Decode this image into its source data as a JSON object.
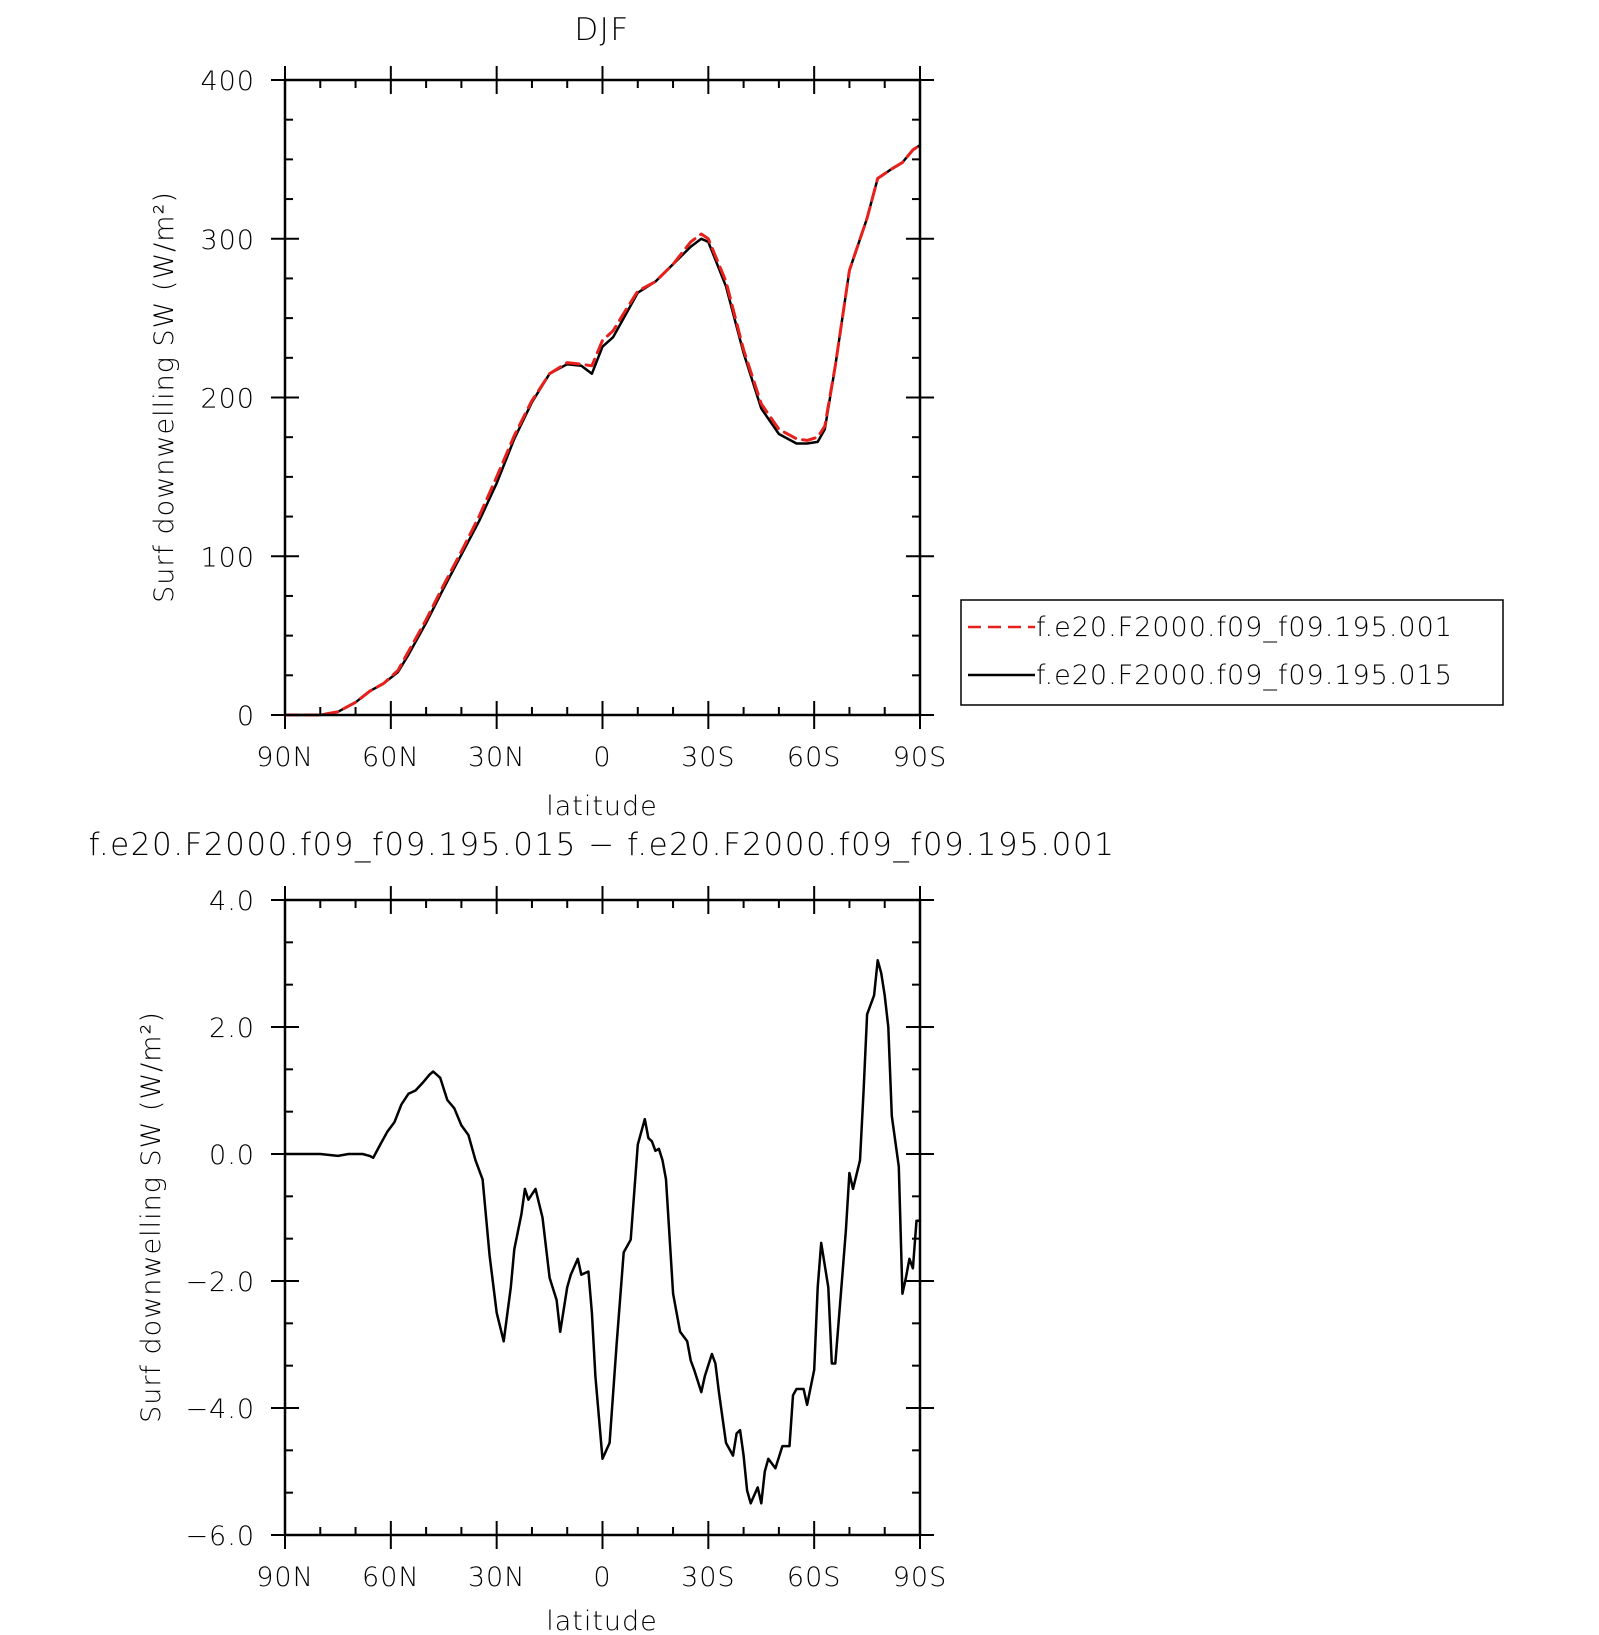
{
  "chart_data": [
    {
      "type": "line",
      "title": "DJF",
      "xlabel": "latitude",
      "ylabel": "Surf downwelling SW (W/m²)",
      "x_ticks": [
        "90N",
        "60N",
        "30N",
        "0",
        "30S",
        "60S",
        "90S"
      ],
      "y_ticks": [
        "0",
        "100",
        "200",
        "300",
        "400"
      ],
      "ylim": [
        0,
        400
      ],
      "xlim": [
        90,
        -90
      ],
      "legend_position": "right",
      "series": [
        {
          "name": "f.e20.F2000.f09_f09.195.001",
          "color": "#e8201c",
          "dash": "dashed",
          "x": [
            90,
            80,
            75,
            70,
            66,
            62,
            58,
            55,
            50,
            45,
            40,
            35,
            30,
            25,
            20,
            15,
            10,
            6,
            3,
            0,
            -3,
            -6,
            -10,
            -15,
            -20,
            -25,
            -28,
            -30,
            -35,
            -40,
            -45,
            -50,
            -55,
            -58,
            -61,
            -63,
            -66,
            -70,
            -75,
            -78,
            -82,
            -85,
            -88,
            -90
          ],
          "y": [
            0,
            0,
            2,
            8,
            15,
            20,
            28,
            40,
            60,
            82,
            103,
            125,
            150,
            176,
            198,
            215,
            222,
            221,
            220,
            236,
            242,
            253,
            267,
            273,
            284,
            298,
            303,
            300,
            273,
            230,
            196,
            180,
            174,
            173,
            175,
            182,
            220,
            280,
            313,
            338,
            344,
            348,
            356,
            359
          ]
        },
        {
          "name": "f.e20.F2000.f09_f09.195.015",
          "color": "#000000",
          "dash": "solid",
          "x": [
            90,
            80,
            75,
            70,
            66,
            62,
            58,
            55,
            50,
            45,
            40,
            35,
            30,
            25,
            20,
            15,
            10,
            6,
            3,
            0,
            -3,
            -6,
            -10,
            -15,
            -20,
            -25,
            -28,
            -30,
            -35,
            -40,
            -45,
            -50,
            -55,
            -58,
            -61,
            -63,
            -66,
            -70,
            -75,
            -78,
            -82,
            -85,
            -88,
            -90
          ],
          "y": [
            0,
            0,
            2,
            8,
            15,
            20,
            27,
            38,
            58,
            80,
            101,
            122,
            146,
            174,
            197,
            215,
            221,
            220,
            215,
            232,
            238,
            250,
            266,
            273,
            284,
            295,
            300,
            298,
            270,
            228,
            193,
            177,
            171,
            171,
            172,
            180,
            220,
            280,
            313,
            338,
            344,
            348,
            356,
            359
          ]
        }
      ]
    },
    {
      "type": "line",
      "title": "f.e20.F2000.f09_f09.195.015 − f.e20.F2000.f09_f09.195.001",
      "xlabel": "latitude",
      "ylabel": "Surf downwelling SW (W/m²)",
      "x_ticks": [
        "90N",
        "60N",
        "30N",
        "0",
        "30S",
        "60S",
        "90S"
      ],
      "y_ticks": [
        "−6.0",
        "−4.0",
        "−2.0",
        "0.0",
        "2.0",
        "4.0"
      ],
      "ylim": [
        -6,
        4
      ],
      "xlim": [
        90,
        -90
      ],
      "series": [
        {
          "color": "#000000",
          "dash": "solid",
          "x": [
            90,
            80,
            75,
            72,
            70,
            68,
            66,
            65,
            63,
            61,
            59,
            57,
            55,
            53,
            51,
            49,
            48,
            46,
            44,
            42,
            40,
            38,
            36,
            34,
            32,
            30,
            28,
            26,
            25,
            23,
            22,
            21,
            19,
            17,
            15,
            13,
            12,
            10,
            9,
            7,
            6,
            4,
            3,
            2,
            0,
            -2,
            -4,
            -6,
            -8,
            -10,
            -11,
            -12,
            -13,
            -14,
            -15,
            -16,
            -17,
            -18,
            -20,
            -22,
            -24,
            -25,
            -26,
            -28,
            -29,
            -31,
            -32,
            -33,
            -35,
            -37,
            -38,
            -39,
            -40,
            -41,
            -42,
            -44,
            -45,
            -46,
            -47,
            -49,
            -51,
            -53,
            -54,
            -55,
            -57,
            -58,
            -60,
            -61,
            -62,
            -64,
            -65,
            -66,
            -68,
            -69,
            -70,
            -71,
            -73,
            -74,
            -75,
            -77,
            -78,
            -79,
            -80,
            -81,
            -82,
            -84,
            -85,
            -86,
            -87,
            -88,
            -89,
            -90
          ],
          "y": [
            0.0,
            0.0,
            -0.03,
            0.0,
            0.0,
            0.0,
            -0.03,
            -0.06,
            0.15,
            0.35,
            0.5,
            0.78,
            0.95,
            1.0,
            1.12,
            1.25,
            1.3,
            1.2,
            0.85,
            0.72,
            0.45,
            0.3,
            -0.1,
            -0.4,
            -1.6,
            -2.5,
            -2.95,
            -2.1,
            -1.5,
            -0.95,
            -0.55,
            -0.72,
            -0.55,
            -1.0,
            -1.95,
            -2.3,
            -2.8,
            -2.1,
            -1.9,
            -1.65,
            -1.9,
            -1.85,
            -2.5,
            -3.5,
            -4.8,
            -4.55,
            -3.0,
            -1.55,
            -1.35,
            0.15,
            0.35,
            0.55,
            0.25,
            0.2,
            0.05,
            0.08,
            -0.1,
            -0.4,
            -2.2,
            -2.8,
            -2.95,
            -3.25,
            -3.4,
            -3.75,
            -3.5,
            -3.15,
            -3.3,
            -3.75,
            -4.55,
            -4.75,
            -4.4,
            -4.35,
            -4.75,
            -5.3,
            -5.5,
            -5.25,
            -5.5,
            -5.0,
            -4.8,
            -4.95,
            -4.6,
            -4.6,
            -3.8,
            -3.7,
            -3.7,
            -3.95,
            -3.4,
            -2.1,
            -1.4,
            -2.1,
            -3.3,
            -3.3,
            -1.9,
            -1.2,
            -0.3,
            -0.55,
            -0.1,
            1.0,
            2.2,
            2.5,
            3.05,
            2.85,
            2.5,
            2.0,
            0.6,
            -0.2,
            -2.2,
            -1.95,
            -1.65,
            -1.8,
            -1.05,
            -1.05
          ]
        }
      ]
    }
  ]
}
